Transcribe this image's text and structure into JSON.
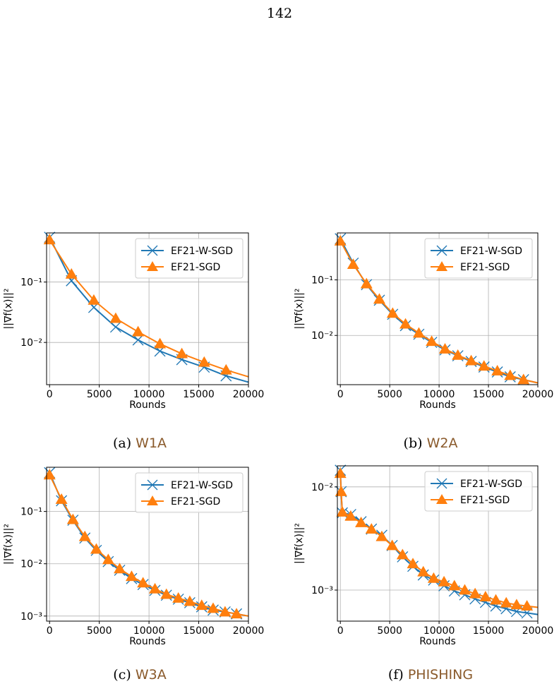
{
  "page": {
    "number": "142"
  },
  "captions": [
    {
      "prefix": "(a)",
      "name": "W1A"
    },
    {
      "prefix": "(b)",
      "name": "W2A"
    },
    {
      "prefix": "(c)",
      "name": "W3A"
    },
    {
      "prefix": "(f)",
      "name": "PHISHING"
    }
  ],
  "colors": {
    "ef21_w_sgd": "#1f77b4",
    "ef21_sgd": "#ff7f0e",
    "grid": "#b0b0b0",
    "caption_dataset": "#8a5a2b"
  },
  "chart_data": [
    {
      "type": "line",
      "xlabel": "Rounds",
      "ylabel": "||∇f(x)||²",
      "yscale": "log",
      "xlim": [
        -300,
        20000
      ],
      "ylim": [
        0.002,
        0.65
      ],
      "xticks": [
        0,
        5000,
        10000,
        15000,
        20000
      ],
      "yticks": [
        {
          "value": 0.1,
          "label": "10⁻¹"
        },
        {
          "value": 0.01,
          "label": "10⁻²"
        }
      ],
      "grid": true,
      "legend": "top-right",
      "series": [
        {
          "name": "EF21-W-SGD",
          "marker": "x",
          "x": [
            0,
            2200,
            4450,
            6650,
            8900,
            11100,
            13300,
            15550,
            17750,
            20000
          ],
          "y": [
            0.55,
            0.105,
            0.038,
            0.018,
            0.011,
            0.0072,
            0.0052,
            0.0039,
            0.0028,
            0.0022
          ]
        },
        {
          "name": "EF21-SGD",
          "marker": "triangle",
          "x": [
            0,
            2200,
            4450,
            6650,
            8900,
            11100,
            13300,
            15550,
            17750,
            20000
          ],
          "y": [
            0.5,
            0.135,
            0.05,
            0.025,
            0.015,
            0.0095,
            0.0065,
            0.0047,
            0.0035,
            0.0027
          ]
        }
      ]
    },
    {
      "type": "line",
      "xlabel": "Rounds",
      "ylabel": "||∇f(x)||²",
      "yscale": "log",
      "xlim": [
        -300,
        20000
      ],
      "ylim": [
        0.0013,
        0.7
      ],
      "xticks": [
        0,
        5000,
        10000,
        15000,
        20000
      ],
      "yticks": [
        {
          "value": 0.1,
          "label": "10⁻¹"
        },
        {
          "value": 0.01,
          "label": "10⁻²"
        }
      ],
      "grid": true,
      "legend": "top-right",
      "series": [
        {
          "name": "EF21-W-SGD",
          "marker": "x",
          "x": [
            0,
            1300,
            2650,
            3950,
            5300,
            6600,
            7950,
            9250,
            10600,
            11900,
            13250,
            14550,
            15900,
            17200,
            18550,
            20000
          ],
          "y": [
            0.55,
            0.2,
            0.082,
            0.043,
            0.024,
            0.015,
            0.0105,
            0.0075,
            0.0055,
            0.0043,
            0.0034,
            0.0027,
            0.0022,
            0.0018,
            0.0016,
            0.0014
          ]
        },
        {
          "name": "EF21-SGD",
          "marker": "triangle",
          "x": [
            0,
            1300,
            2650,
            3950,
            5300,
            6600,
            7950,
            9250,
            10600,
            11900,
            13250,
            14550,
            15900,
            17200,
            18550,
            20000
          ],
          "y": [
            0.5,
            0.19,
            0.085,
            0.045,
            0.025,
            0.016,
            0.011,
            0.0078,
            0.0057,
            0.0044,
            0.0035,
            0.0028,
            0.0023,
            0.0019,
            0.0016,
            0.0014
          ]
        }
      ]
    },
    {
      "type": "line",
      "xlabel": "Rounds",
      "ylabel": "||∇f(x)||²",
      "yscale": "log",
      "xlim": [
        -300,
        20000
      ],
      "ylim": [
        0.0008,
        0.7
      ],
      "xticks": [
        0,
        5000,
        10000,
        15000,
        20000
      ],
      "yticks": [
        {
          "value": 0.1,
          "label": "10⁻¹"
        },
        {
          "value": 0.01,
          "label": "10⁻²"
        },
        {
          "value": 0.001,
          "label": "10⁻³"
        }
      ],
      "grid": true,
      "legend": "top-right",
      "series": [
        {
          "name": "EF21-W-SGD",
          "marker": "x",
          "x": [
            0,
            1200,
            2350,
            3550,
            4700,
            5900,
            7050,
            8250,
            9400,
            10600,
            11750,
            12950,
            14100,
            15300,
            16450,
            17650,
            18800,
            20000
          ],
          "y": [
            0.55,
            0.16,
            0.068,
            0.031,
            0.018,
            0.011,
            0.0075,
            0.0052,
            0.004,
            0.0031,
            0.0025,
            0.0021,
            0.0018,
            0.0015,
            0.0013,
            0.0012,
            0.0011,
            0.001
          ]
        },
        {
          "name": "EF21-SGD",
          "marker": "triangle",
          "x": [
            0,
            1200,
            2350,
            3550,
            4700,
            5900,
            7050,
            8250,
            9400,
            10600,
            11750,
            12950,
            14100,
            15300,
            16450,
            17650,
            18800,
            20000
          ],
          "y": [
            0.5,
            0.17,
            0.07,
            0.033,
            0.019,
            0.012,
            0.008,
            0.0057,
            0.0043,
            0.0033,
            0.0026,
            0.0022,
            0.0019,
            0.0016,
            0.0014,
            0.0012,
            0.0011,
            0.001
          ]
        }
      ]
    },
    {
      "type": "line",
      "xlabel": "Rounds",
      "ylabel": "||∇f(x)||²",
      "yscale": "log",
      "xlim": [
        -300,
        20000
      ],
      "ylim": [
        0.0005,
        0.016
      ],
      "xticks": [
        0,
        5000,
        10000,
        15000,
        20000
      ],
      "yticks": [
        {
          "value": 0.01,
          "label": "10⁻²"
        },
        {
          "value": 0.001,
          "label": "10⁻³"
        }
      ],
      "grid": true,
      "legend": "top-right",
      "series": [
        {
          "name": "EF21-W-SGD",
          "marker": "x",
          "x": [
            0,
            80,
            200,
            1050,
            2100,
            3150,
            4200,
            5250,
            6300,
            7350,
            8400,
            9450,
            10500,
            11550,
            12600,
            13650,
            14700,
            15750,
            16800,
            17850,
            18900,
            20000
          ],
          "y": [
            0.0145,
            0.009,
            0.0056,
            0.0054,
            0.0046,
            0.0039,
            0.0034,
            0.0027,
            0.0021,
            0.0017,
            0.0014,
            0.00125,
            0.0011,
            0.00098,
            0.0009,
            0.00082,
            0.00076,
            0.0007,
            0.00066,
            0.00062,
            0.0006,
            0.00058
          ]
        },
        {
          "name": "EF21-SGD",
          "marker": "triangle",
          "x": [
            0,
            80,
            200,
            1050,
            2100,
            3150,
            4200,
            5250,
            6300,
            7350,
            8400,
            9450,
            10500,
            11550,
            12600,
            13650,
            14700,
            15750,
            16800,
            17850,
            18900,
            20000
          ],
          "y": [
            0.0135,
            0.009,
            0.0057,
            0.0052,
            0.0045,
            0.0039,
            0.0033,
            0.0027,
            0.0022,
            0.0018,
            0.0015,
            0.0013,
            0.0012,
            0.0011,
            0.001,
            0.00092,
            0.00086,
            0.0008,
            0.00075,
            0.00072,
            0.0007,
            0.00068
          ]
        }
      ]
    }
  ]
}
